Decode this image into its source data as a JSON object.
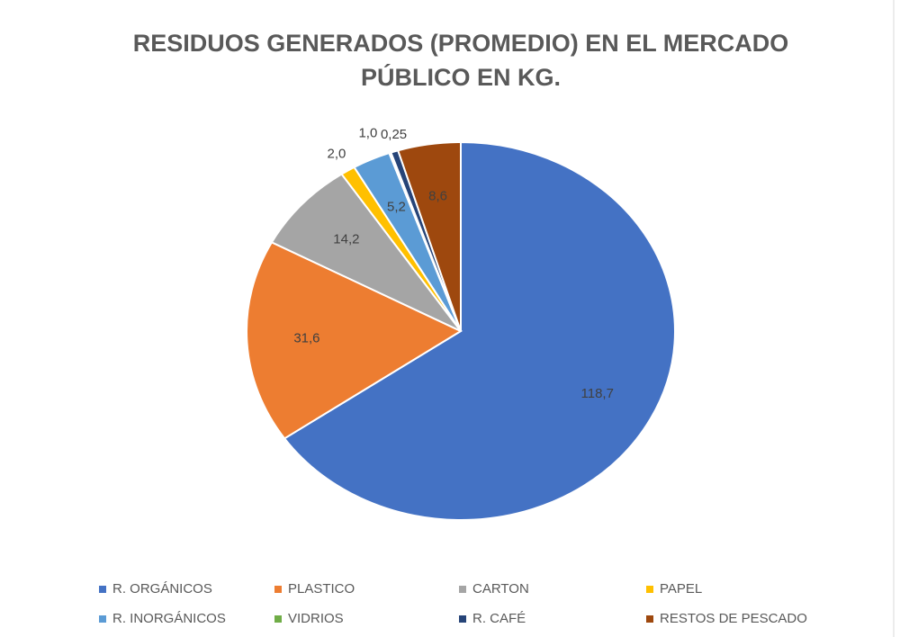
{
  "chart_data": {
    "type": "pie",
    "title": [
      "RESIDUOS GENERADOS (PROMEDIO) EN EL MERCADO",
      "PÚBLICO EN KG."
    ],
    "categories": [
      "R. ORGÁNICOS",
      "PLASTICO",
      "CARTON",
      "PAPEL",
      "R. INORGÁNICOS",
      "VIDRIOS",
      "R. CAFÉ",
      "RESTOS DE PESCADO"
    ],
    "values": [
      118.7,
      31.6,
      14.2,
      2.0,
      5.2,
      0.25,
      1.0,
      8.6
    ],
    "value_labels": [
      "118,7",
      "31,6",
      "14,2",
      "2,0",
      "5,2",
      "0,25",
      "1,0",
      "8,6"
    ],
    "colors": [
      "#4472c4",
      "#ed7d31",
      "#a5a5a5",
      "#ffc000",
      "#5b9bd5",
      "#70ad47",
      "#264478",
      "#9e480e"
    ],
    "legend": "bottom"
  }
}
